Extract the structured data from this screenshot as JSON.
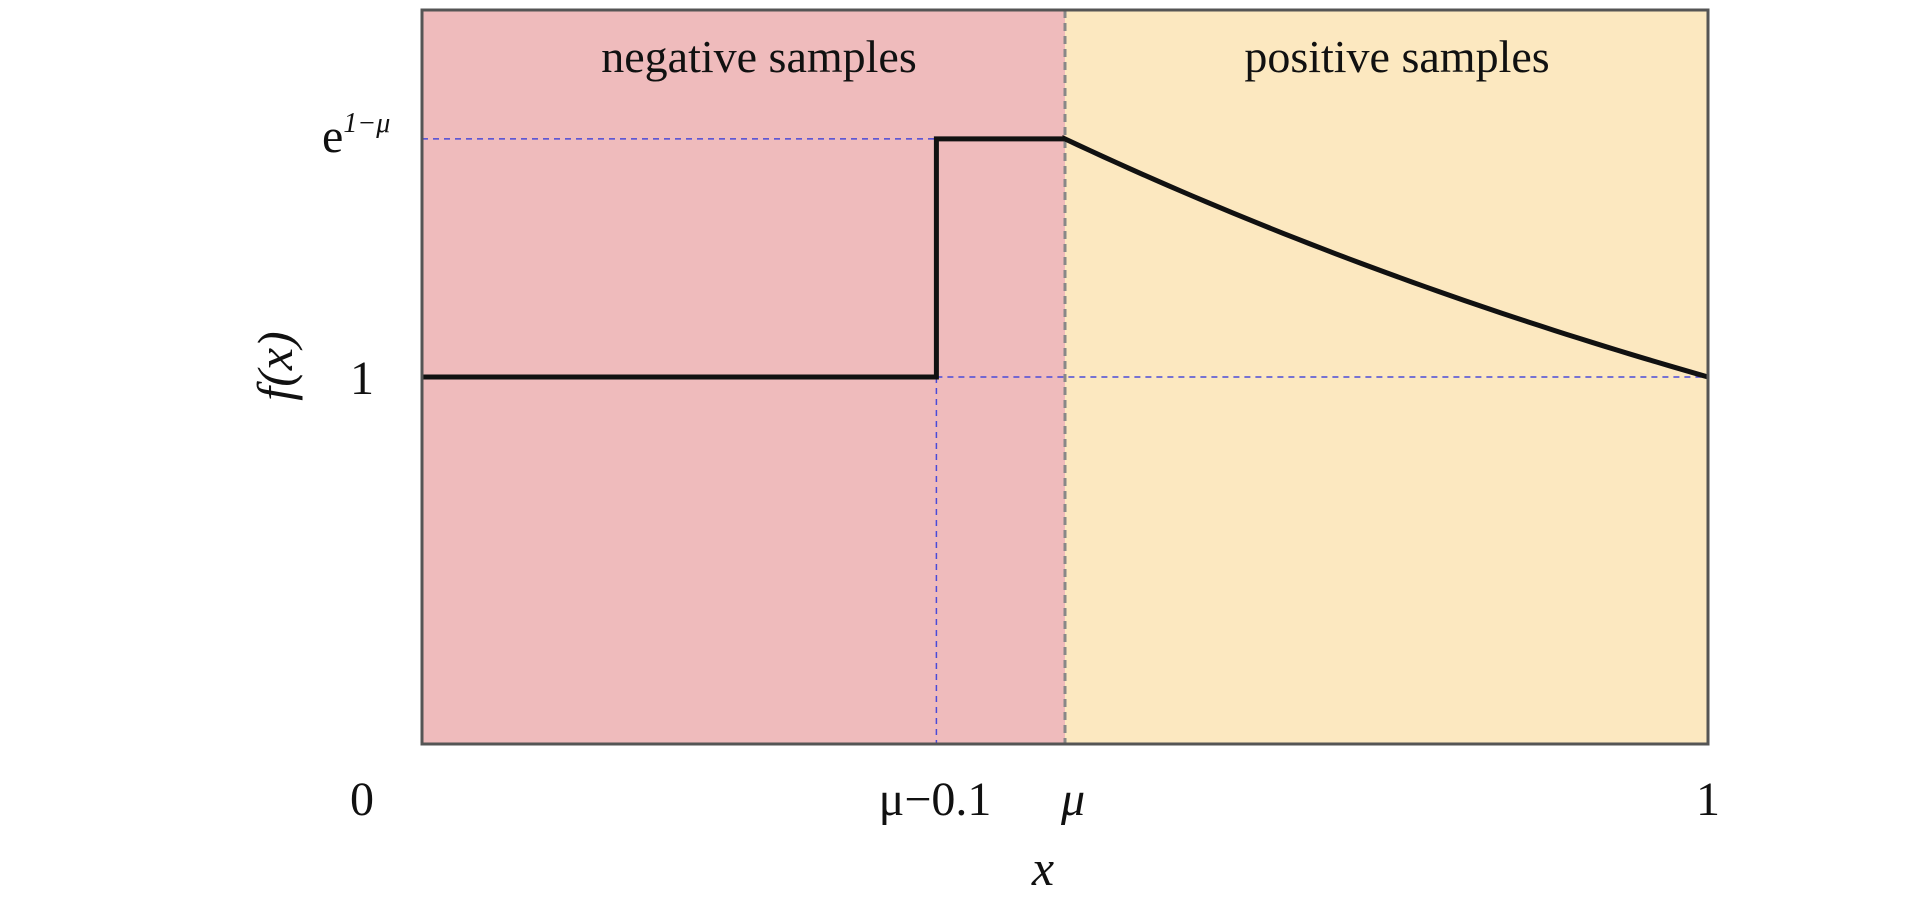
{
  "chart_data": {
    "type": "line",
    "title": "",
    "xlabel": "x",
    "ylabel": "f(x)",
    "mu": 0.5,
    "xlim": [
      0,
      1
    ],
    "ylim": [
      0,
      2
    ],
    "grid": false,
    "x_ticks": [
      {
        "value": 0,
        "label": "0"
      },
      {
        "value": 0.4,
        "label": "μ−0.1"
      },
      {
        "value": 0.5,
        "label": "μ"
      },
      {
        "value": 1,
        "label": "1"
      }
    ],
    "y_ticks": [
      {
        "value": 1,
        "label": "1"
      },
      {
        "value": 1.6487,
        "label_base": "e",
        "label_sup": "1−μ"
      }
    ],
    "regions": [
      {
        "label": "negative samples",
        "x_range": [
          0,
          0.5
        ],
        "color": "#efbbbc"
      },
      {
        "label": "positive samples",
        "x_range": [
          0.5,
          1
        ],
        "color": "#fce8c0"
      }
    ],
    "series": [
      {
        "x": [
          0,
          0.4,
          0.4,
          0.5,
          0.55,
          0.6,
          0.65,
          0.7,
          0.75,
          0.8,
          0.85,
          0.9,
          0.95,
          1.0
        ],
        "y": [
          1,
          1,
          1.6487,
          1.6487,
          1.5683,
          1.4918,
          1.4191,
          1.3499,
          1.284,
          1.2214,
          1.1618,
          1.1052,
          1.0513,
          1.0
        ],
        "color": "#111111"
      }
    ],
    "reference_lines": {
      "color": "#4a4ad8",
      "style": "dashed"
    },
    "region_divider_color": "#888888"
  }
}
